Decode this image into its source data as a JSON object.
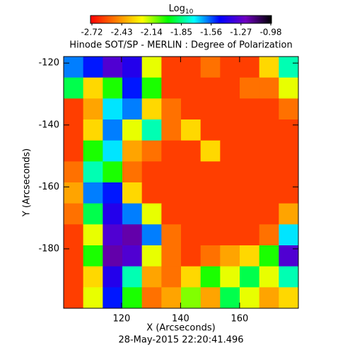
{
  "chart_data": {
    "type": "heatmap",
    "title": "Hinode SOT/SP - MERLIN : Degree of Polarization",
    "x_label": "X (Arcseconds)",
    "y_label": "Y (Arcseconds)",
    "footer": "28-May-2015 22:20:41.496",
    "xlim": [
      100.4,
      179.9
    ],
    "ylim": [
      -199.2,
      -117.9
    ],
    "xticks": [
      120,
      140,
      160
    ],
    "yticks": [
      -120,
      -140,
      -160,
      -180
    ],
    "colorbar": {
      "label": "Log",
      "label_sub": "10",
      "lim": [
        -2.72,
        -0.98
      ],
      "ticks": [
        -2.72,
        -2.43,
        -2.14,
        -1.85,
        -1.56,
        -1.27,
        -0.98
      ],
      "colormap": [
        "#ff0000",
        "#ff8000",
        "#ffff00",
        "#00ff00",
        "#00ffff",
        "#0000ff",
        "#7000c0",
        "#000000"
      ]
    },
    "z": [
      [
        -1.6,
        -1.5,
        -1.3,
        -1.4,
        -2.2,
        -2.6,
        -2.6,
        -2.5,
        -2.6,
        -2.6,
        -2.3,
        -1.8
      ],
      [
        -1.9,
        -2.3,
        -2.0,
        -1.5,
        -2.0,
        -2.6,
        -2.6,
        -2.6,
        -2.6,
        -2.5,
        -2.5,
        -2.2
      ],
      [
        -2.6,
        -2.4,
        -1.7,
        -1.6,
        -2.3,
        -2.5,
        -2.6,
        -2.6,
        -2.6,
        -2.6,
        -2.6,
        -2.5
      ],
      [
        -2.6,
        -2.3,
        -1.6,
        -2.2,
        -1.8,
        -2.5,
        -2.3,
        -2.6,
        -2.6,
        -2.6,
        -2.6,
        -2.6
      ],
      [
        -2.6,
        -2.0,
        -1.7,
        -2.4,
        -2.5,
        -2.6,
        -2.6,
        -2.3,
        -2.6,
        -2.6,
        -2.6,
        -2.6
      ],
      [
        -2.5,
        -1.8,
        -2.0,
        -2.5,
        -2.6,
        -2.6,
        -2.6,
        -2.6,
        -2.6,
        -2.6,
        -2.6,
        -2.6
      ],
      [
        -2.4,
        -1.6,
        -1.5,
        -2.3,
        -2.6,
        -2.6,
        -2.6,
        -2.6,
        -2.6,
        -2.6,
        -2.6,
        -2.6
      ],
      [
        -2.5,
        -1.9,
        -1.4,
        -1.6,
        -2.2,
        -2.6,
        -2.6,
        -2.6,
        -2.6,
        -2.6,
        -2.6,
        -2.4
      ],
      [
        -2.6,
        -2.2,
        -1.3,
        -1.2,
        -1.6,
        -2.5,
        -2.6,
        -2.6,
        -2.6,
        -2.6,
        -2.5,
        -1.7
      ],
      [
        -2.6,
        -2.0,
        -1.2,
        -1.3,
        -2.2,
        -2.5,
        -2.6,
        -2.5,
        -2.4,
        -2.3,
        -2.0,
        -1.3
      ],
      [
        -2.6,
        -2.3,
        -1.4,
        -1.8,
        -2.4,
        -2.5,
        -2.3,
        -2.0,
        -2.2,
        -1.9,
        -2.2,
        -1.8
      ],
      [
        -2.6,
        -2.2,
        -1.5,
        -2.0,
        -2.5,
        -2.4,
        -2.1,
        -2.4,
        -1.9,
        -2.2,
        -2.4,
        -2.3
      ]
    ]
  }
}
